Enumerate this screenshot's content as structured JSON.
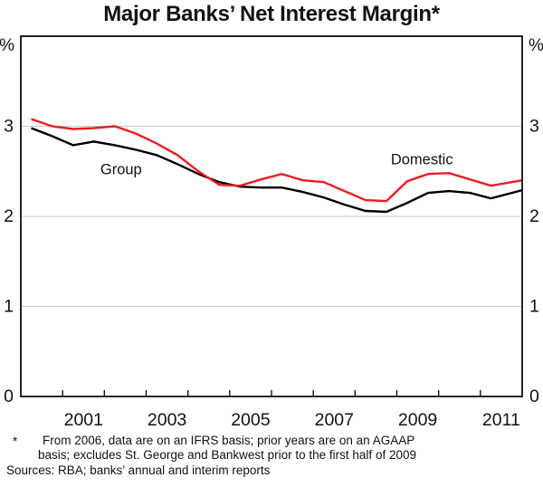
{
  "header": {
    "title": "Major Banks’ Net Interest Margin*"
  },
  "chart_data": {
    "type": "line",
    "title": "Major Banks’ Net Interest Margin*",
    "unit": "%",
    "x_range": [
      2000,
      2012
    ],
    "ylim": [
      0,
      4
    ],
    "yticks": [
      0,
      1,
      2,
      3
    ],
    "gridlines": [
      1,
      2,
      3
    ],
    "grid_color": "#c9c9c9",
    "xticks": [
      2001,
      2002,
      2003,
      2004,
      2005,
      2006,
      2007,
      2008,
      2009,
      2010,
      2011
    ],
    "xlabels": [
      2001,
      2003,
      2005,
      2007,
      2009,
      2011
    ],
    "legend_position": "inline-labels",
    "x": [
      2000.25,
      2000.75,
      2001.25,
      2001.75,
      2002.25,
      2002.75,
      2003.25,
      2003.75,
      2004.25,
      2004.75,
      2005.25,
      2005.75,
      2006.25,
      2006.75,
      2007.25,
      2007.75,
      2008.25,
      2008.75,
      2009.25,
      2009.75,
      2010.25,
      2010.75,
      2011.25,
      2012
    ],
    "series": [
      {
        "name": "Group",
        "color": "#000000",
        "values": [
          2.98,
          2.89,
          2.79,
          2.83,
          2.79,
          2.74,
          2.68,
          2.58,
          2.47,
          2.38,
          2.33,
          2.32,
          2.32,
          2.27,
          2.21,
          2.13,
          2.06,
          2.05,
          2.15,
          2.26,
          2.28,
          2.26,
          2.2,
          2.29
        ]
      },
      {
        "name": "Domestic",
        "color": "#ed1c24",
        "values": [
          3.08,
          3.0,
          2.97,
          2.98,
          3.0,
          2.92,
          2.81,
          2.68,
          2.5,
          2.35,
          2.34,
          2.41,
          2.47,
          2.4,
          2.38,
          2.28,
          2.18,
          2.17,
          2.39,
          2.47,
          2.48,
          2.41,
          2.34,
          2.4
        ]
      }
    ],
    "annotations": [
      {
        "text": "Group",
        "x": 2002.4,
        "y": 2.53,
        "color": "#000000"
      },
      {
        "text": "Domestic",
        "x": 2009.6,
        "y": 2.64,
        "color": "#ed1c24"
      }
    ]
  },
  "footnote": {
    "marker": "*",
    "line1": "From 2006, data are on an IFRS basis; prior years are on an AGAAP",
    "line2": "basis; excludes St. George and Bankwest prior to the first half of 2009",
    "sources": "Sources: RBA; banks’ annual and interim reports"
  }
}
